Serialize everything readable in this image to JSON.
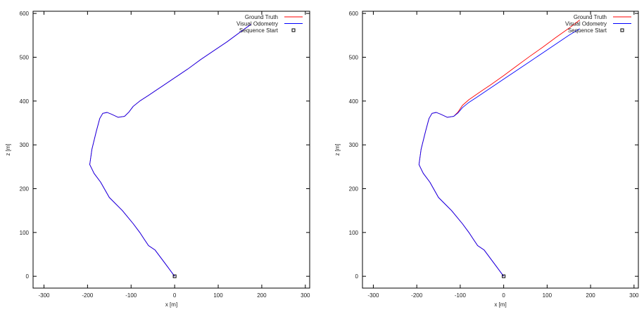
{
  "chart_data": [
    {
      "type": "line",
      "title": "",
      "xlabel": "x [m]",
      "ylabel": "z [m]",
      "xlim": [
        -325,
        310
      ],
      "ylim": [
        -27,
        605
      ],
      "xticks": [
        -300,
        -200,
        -100,
        0,
        100,
        200,
        300
      ],
      "yticks": [
        0,
        100,
        200,
        300,
        400,
        500,
        600
      ],
      "grid": false,
      "legend_position": "top-right",
      "legend": [
        "Ground Truth",
        "Visual Odometry",
        "Sequence Start"
      ],
      "series": [
        {
          "name": "Ground Truth",
          "color": "#ff0000",
          "x": [
            0,
            -15,
            -30,
            -45,
            -60,
            -70,
            -80,
            -95,
            -120,
            -150,
            -170,
            -185,
            -190,
            -195,
            -190,
            -180,
            -172,
            -165,
            -155,
            -145,
            -130,
            -115,
            -105,
            -95,
            -80,
            -60,
            -30,
            0,
            30,
            60,
            90,
            120,
            150,
            175
          ],
          "y": [
            0,
            20,
            40,
            60,
            70,
            85,
            100,
            120,
            150,
            180,
            215,
            235,
            245,
            255,
            290,
            330,
            360,
            372,
            374,
            370,
            363,
            365,
            375,
            388,
            400,
            413,
            433,
            453,
            473,
            495,
            515,
            535,
            557,
            575
          ]
        },
        {
          "name": "Visual Odometry",
          "color": "#0000ff",
          "x": [
            0,
            -15,
            -30,
            -45,
            -60,
            -70,
            -80,
            -95,
            -120,
            -150,
            -170,
            -185,
            -190,
            -195,
            -190,
            -180,
            -172,
            -165,
            -155,
            -145,
            -130,
            -115,
            -105,
            -95,
            -80,
            -60,
            -30,
            0,
            30,
            60,
            90,
            120,
            150,
            175
          ],
          "y": [
            0,
            20,
            40,
            60,
            70,
            85,
            100,
            120,
            150,
            180,
            215,
            235,
            245,
            255,
            290,
            330,
            360,
            372,
            374,
            370,
            363,
            365,
            375,
            388,
            400,
            413,
            433,
            453,
            473,
            495,
            515,
            535,
            557,
            575
          ]
        },
        {
          "name": "Sequence Start",
          "color": "#000000",
          "marker": "square",
          "x": [
            0
          ],
          "y": [
            0
          ]
        }
      ]
    },
    {
      "type": "line",
      "title": "",
      "xlabel": "x [m]",
      "ylabel": "z [m]",
      "xlim": [
        -325,
        310
      ],
      "ylim": [
        -27,
        605
      ],
      "xticks": [
        -300,
        -200,
        -100,
        0,
        100,
        200,
        300
      ],
      "yticks": [
        0,
        100,
        200,
        300,
        400,
        500,
        600
      ],
      "grid": false,
      "legend_position": "top-right",
      "legend": [
        "Ground Truth",
        "Visual Odometry",
        "Sequence Start"
      ],
      "series": [
        {
          "name": "Ground Truth",
          "color": "#ff0000",
          "x": [
            0,
            -15,
            -30,
            -45,
            -60,
            -70,
            -80,
            -95,
            -120,
            -150,
            -170,
            -185,
            -190,
            -195,
            -190,
            -180,
            -172,
            -165,
            -155,
            -145,
            -130,
            -115,
            -105,
            -95,
            -80,
            -60,
            -30,
            0,
            30,
            60,
            90,
            120,
            150,
            175
          ],
          "y": [
            0,
            20,
            40,
            60,
            70,
            85,
            100,
            120,
            150,
            180,
            215,
            235,
            245,
            255,
            290,
            330,
            360,
            372,
            374,
            370,
            363,
            365,
            375,
            390,
            403,
            417,
            437,
            458,
            480,
            502,
            523,
            545,
            566,
            585
          ]
        },
        {
          "name": "Visual Odometry",
          "color": "#0000ff",
          "x": [
            0,
            -15,
            -30,
            -45,
            -60,
            -70,
            -80,
            -95,
            -120,
            -150,
            -170,
            -185,
            -190,
            -195,
            -190,
            -180,
            -172,
            -165,
            -155,
            -145,
            -130,
            -115,
            -105,
            -95,
            -80,
            -60,
            -30,
            0,
            30,
            60,
            90,
            120,
            150,
            175
          ],
          "y": [
            0,
            20,
            40,
            60,
            70,
            85,
            100,
            120,
            150,
            180,
            215,
            235,
            245,
            255,
            290,
            330,
            360,
            372,
            374,
            370,
            363,
            365,
            373,
            385,
            397,
            410,
            430,
            450,
            470,
            490,
            510,
            530,
            550,
            565
          ]
        },
        {
          "name": "Sequence Start",
          "color": "#000000",
          "marker": "square",
          "x": [
            0
          ],
          "y": [
            0
          ]
        }
      ]
    }
  ]
}
